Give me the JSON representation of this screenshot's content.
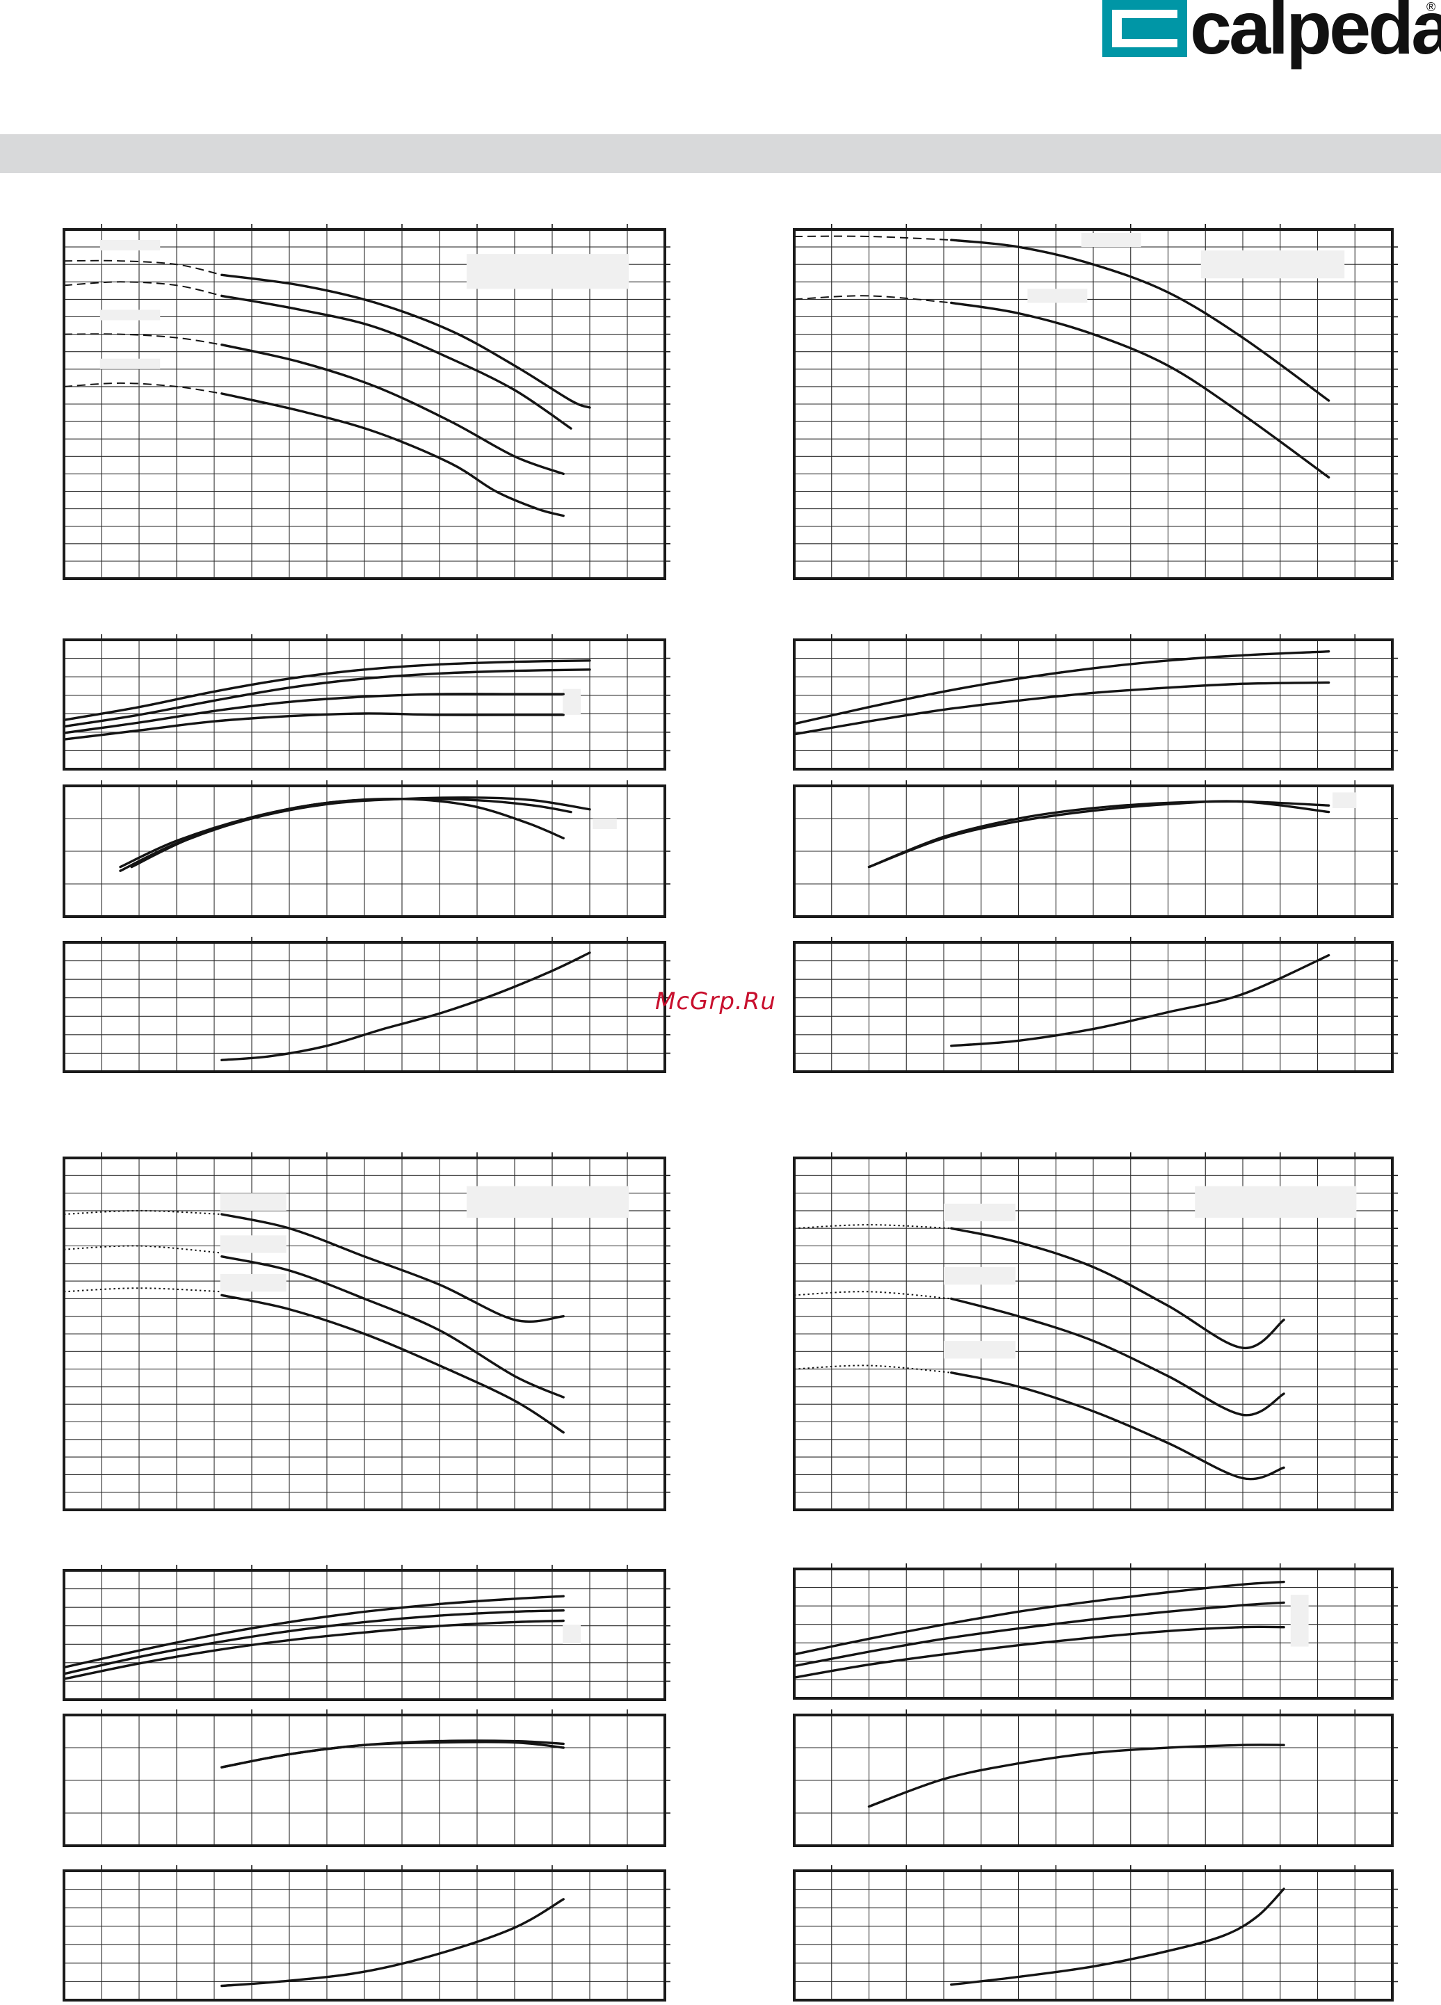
{
  "header": {
    "brand": "calpeda",
    "registered_mark": "®",
    "logo_colors": {
      "mark": "#0096a6",
      "inner": "#ffffff",
      "text": "#111111"
    },
    "band_color": "#d8d9da"
  },
  "watermark": {
    "text": "McGrp.Ru",
    "color": "#c8102e"
  },
  "chart_data": [
    {
      "id": "A-head",
      "type": "line",
      "title": "",
      "xlabel": "",
      "ylabel": "",
      "xlim": [
        0,
        16
      ],
      "ylim": [
        0,
        100
      ],
      "extension_style": "dashed",
      "series": [
        {
          "x": [
            4.2,
            6.3,
            8.3,
            10.3,
            12.0,
            13.5,
            14.0
          ],
          "y": [
            87,
            84,
            79,
            71,
            61,
            51,
            49
          ]
        },
        {
          "x": [
            4.2,
            6.3,
            8.3,
            10.3,
            12.0,
            13.5
          ],
          "y": [
            81,
            77,
            72,
            63,
            54,
            43
          ]
        },
        {
          "x": [
            4.2,
            6.3,
            8.3,
            10.3,
            12.0,
            13.3
          ],
          "y": [
            67,
            62,
            55,
            45,
            35,
            30
          ]
        },
        {
          "x": [
            4.2,
            6.3,
            8.3,
            10.3,
            11.5,
            12.6,
            13.3
          ],
          "y": [
            53,
            48,
            42,
            33,
            25,
            20,
            18
          ]
        }
      ],
      "extensions": [
        {
          "x": [
            0,
            1.5,
            3.0,
            4.2
          ],
          "y": [
            91,
            91,
            90,
            87
          ]
        },
        {
          "x": [
            0,
            1.5,
            3.0,
            4.2
          ],
          "y": [
            84,
            85,
            84,
            81
          ]
        },
        {
          "x": [
            0,
            1.5,
            3.0,
            4.2
          ],
          "y": [
            70,
            70,
            69,
            67
          ]
        },
        {
          "x": [
            0,
            1.5,
            3.0,
            4.2
          ],
          "y": [
            55,
            56,
            55,
            53
          ]
        }
      ]
    },
    {
      "id": "A-power",
      "type": "line",
      "title": "",
      "xlabel": "",
      "ylabel": "",
      "xlim": [
        0,
        16
      ],
      "ylim": [
        0,
        100
      ],
      "series": [
        {
          "x": [
            0,
            2,
            4,
            6,
            8,
            10,
            12,
            14
          ],
          "y": [
            38,
            48,
            60,
            70,
            77,
            81,
            83,
            84
          ]
        },
        {
          "x": [
            0,
            2,
            4,
            6,
            8,
            10,
            12,
            14
          ],
          "y": [
            33,
            42,
            53,
            63,
            70,
            74,
            76,
            77
          ]
        },
        {
          "x": [
            0,
            2,
            4,
            6,
            8,
            10,
            12,
            13.3
          ],
          "y": [
            28,
            36,
            45,
            52,
            56,
            58,
            58,
            58
          ]
        },
        {
          "x": [
            0,
            2,
            4,
            6,
            8,
            10,
            12,
            13.3
          ],
          "y": [
            23,
            30,
            37,
            41,
            43,
            42,
            42,
            42
          ]
        }
      ]
    },
    {
      "id": "A-efficiency",
      "type": "line",
      "title": "",
      "xlabel": "",
      "ylabel": "",
      "xlim": [
        0,
        16
      ],
      "ylim": [
        0,
        100
      ],
      "series": [
        {
          "x": [
            1.5,
            3,
            5,
            7,
            9,
            11,
            12.5,
            14
          ],
          "y": [
            35,
            56,
            75,
            86,
            90,
            91,
            89,
            82
          ]
        },
        {
          "x": [
            1.5,
            3,
            5,
            7,
            9,
            11,
            12.5,
            13.5
          ],
          "y": [
            38,
            58,
            76,
            87,
            90,
            89,
            85,
            80
          ]
        },
        {
          "x": [
            1.8,
            3.3,
            5.2,
            7,
            9,
            10.8,
            12.3,
            13.3
          ],
          "y": [
            38,
            59,
            77,
            87,
            90,
            85,
            72,
            60
          ]
        }
      ]
    },
    {
      "id": "A-npsh",
      "type": "line",
      "title": "",
      "xlabel": "",
      "ylabel": "",
      "xlim": [
        0,
        16
      ],
      "ylim": [
        0,
        100
      ],
      "series": [
        {
          "x": [
            4.2,
            5.5,
            7,
            8.5,
            10,
            11.5,
            13,
            14
          ],
          "y": [
            9,
            12,
            20,
            33,
            45,
            60,
            78,
            92
          ]
        }
      ]
    },
    {
      "id": "B-head",
      "type": "line",
      "title": "",
      "xlabel": "",
      "ylabel": "",
      "xlim": [
        0,
        16
      ],
      "ylim": [
        0,
        100
      ],
      "extension_style": "dashed",
      "series": [
        {
          "x": [
            4.2,
            6,
            8,
            10,
            12,
            14.3
          ],
          "y": [
            97,
            95,
            90,
            82,
            69,
            51
          ]
        },
        {
          "x": [
            4.2,
            6,
            8,
            10,
            12,
            14.3
          ],
          "y": [
            79,
            76,
            70,
            61,
            47,
            29
          ]
        }
      ],
      "extensions": [
        {
          "x": [
            0,
            2,
            4.2
          ],
          "y": [
            98,
            98,
            97
          ]
        },
        {
          "x": [
            0,
            2,
            4.2
          ],
          "y": [
            80,
            81,
            79
          ]
        }
      ]
    },
    {
      "id": "B-power",
      "type": "line",
      "title": "",
      "xlabel": "",
      "ylabel": "",
      "xlim": [
        0,
        16
      ],
      "ylim": [
        0,
        100
      ],
      "series": [
        {
          "x": [
            0,
            2,
            4,
            6,
            8,
            10,
            12,
            14.3
          ],
          "y": [
            35,
            48,
            60,
            70,
            78,
            84,
            88,
            91
          ]
        },
        {
          "x": [
            0,
            2,
            4,
            6,
            8,
            10,
            12,
            14.3
          ],
          "y": [
            27,
            37,
            46,
            53,
            59,
            63,
            66,
            67
          ]
        }
      ]
    },
    {
      "id": "B-efficiency",
      "type": "line",
      "title": "",
      "xlabel": "",
      "ylabel": "",
      "xlim": [
        0,
        16
      ],
      "ylim": [
        0,
        100
      ],
      "series": [
        {
          "x": [
            2,
            4,
            6,
            8,
            10,
            12,
            14.3
          ],
          "y": [
            38,
            61,
            75,
            83,
            87,
            88,
            85
          ]
        },
        {
          "x": [
            2,
            4,
            6,
            8,
            10,
            12,
            14.3
          ],
          "y": [
            38,
            60,
            73,
            81,
            86,
            88,
            80
          ]
        }
      ]
    },
    {
      "id": "B-npsh",
      "type": "line",
      "title": "",
      "xlabel": "",
      "ylabel": "",
      "xlim": [
        0,
        16
      ],
      "ylim": [
        0,
        100
      ],
      "series": [
        {
          "x": [
            4.2,
            6,
            8,
            10,
            12,
            14.3
          ],
          "y": [
            20,
            24,
            33,
            46,
            60,
            90
          ]
        }
      ]
    },
    {
      "id": "C-head",
      "type": "line",
      "title": "",
      "xlabel": "",
      "ylabel": "",
      "xlim": [
        0,
        16
      ],
      "ylim": [
        0,
        100
      ],
      "extension_style": "dotted",
      "series": [
        {
          "x": [
            4.2,
            6,
            8,
            10,
            12,
            13.3
          ],
          "y": [
            84,
            80,
            72,
            64,
            54,
            55
          ]
        },
        {
          "x": [
            4.2,
            6,
            8,
            10,
            12,
            13.3
          ],
          "y": [
            72,
            68,
            60,
            51,
            38,
            32
          ]
        },
        {
          "x": [
            4.2,
            6,
            8,
            10,
            12,
            13.3
          ],
          "y": [
            61,
            57,
            50,
            41,
            31,
            22
          ]
        }
      ],
      "extensions": [
        {
          "x": [
            0,
            2,
            4.2
          ],
          "y": [
            84,
            85,
            84
          ]
        },
        {
          "x": [
            0,
            2,
            4.2
          ],
          "y": [
            74,
            75,
            73
          ]
        },
        {
          "x": [
            0,
            2,
            4.2
          ],
          "y": [
            62,
            63,
            62
          ]
        }
      ]
    },
    {
      "id": "C-power",
      "type": "line",
      "title": "",
      "xlabel": "",
      "ylabel": "",
      "xlim": [
        0,
        16
      ],
      "ylim": [
        0,
        100
      ],
      "series": [
        {
          "x": [
            0,
            2,
            4,
            6,
            8,
            10,
            12,
            13.3
          ],
          "y": [
            25,
            38,
            50,
            60,
            68,
            74,
            78,
            80
          ]
        },
        {
          "x": [
            0,
            2,
            4,
            6,
            8,
            10,
            12,
            13.3
          ],
          "y": [
            20,
            33,
            44,
            53,
            60,
            65,
            68,
            69
          ]
        },
        {
          "x": [
            0,
            2,
            4,
            6,
            8,
            10,
            12,
            13.3
          ],
          "y": [
            16,
            28,
            38,
            46,
            52,
            57,
            60,
            61
          ]
        }
      ]
    },
    {
      "id": "C-efficiency",
      "type": "line",
      "title": "",
      "xlabel": "",
      "ylabel": "",
      "xlim": [
        0,
        16
      ],
      "ylim": [
        0,
        100
      ],
      "series": [
        {
          "x": [
            4.2,
            6,
            8,
            10,
            12,
            13.3
          ],
          "y": [
            60,
            70,
            77,
            80,
            80,
            78
          ]
        },
        {
          "x": [
            4.2,
            6,
            8,
            10,
            12,
            13.3
          ],
          "y": [
            60,
            70,
            77,
            79,
            79,
            75
          ]
        }
      ]
    },
    {
      "id": "C-npsh",
      "type": "line",
      "title": "",
      "xlabel": "",
      "ylabel": "",
      "xlim": [
        0,
        16
      ],
      "ylim": [
        0,
        100
      ],
      "series": [
        {
          "x": [
            4.2,
            6,
            8,
            10,
            12,
            13.3
          ],
          "y": [
            11,
            15,
            22,
            36,
            56,
            78
          ]
        }
      ]
    },
    {
      "id": "D-head",
      "type": "line",
      "title": "",
      "xlabel": "",
      "ylabel": "",
      "xlim": [
        0,
        16
      ],
      "ylim": [
        0,
        100
      ],
      "extension_style": "dotted",
      "series": [
        {
          "x": [
            4.2,
            6,
            8,
            10,
            12,
            13.1
          ],
          "y": [
            80,
            76,
            69,
            58,
            46,
            54
          ]
        },
        {
          "x": [
            4.2,
            6,
            8,
            10,
            12,
            13.1
          ],
          "y": [
            60,
            55,
            48,
            38,
            27,
            33
          ]
        },
        {
          "x": [
            4.2,
            6,
            8,
            10,
            12,
            13.1
          ],
          "y": [
            39,
            35,
            28,
            19,
            9,
            12
          ]
        }
      ],
      "extensions": [
        {
          "x": [
            0,
            2,
            4.2
          ],
          "y": [
            80,
            81,
            80
          ]
        },
        {
          "x": [
            0,
            2,
            4.2
          ],
          "y": [
            61,
            62,
            60
          ]
        },
        {
          "x": [
            0,
            2,
            4.2
          ],
          "y": [
            40,
            41,
            39
          ]
        }
      ]
    },
    {
      "id": "D-power",
      "type": "line",
      "title": "",
      "xlabel": "",
      "ylabel": "",
      "xlim": [
        0,
        16
      ],
      "ylim": [
        0,
        100
      ],
      "series": [
        {
          "x": [
            0,
            2,
            4,
            6,
            8,
            10,
            12,
            13.1
          ],
          "y": [
            34,
            46,
            57,
            67,
            75,
            82,
            88,
            90
          ]
        },
        {
          "x": [
            0,
            2,
            4,
            6,
            8,
            10,
            12,
            13.1
          ],
          "y": [
            25,
            36,
            46,
            54,
            61,
            67,
            72,
            74
          ]
        },
        {
          "x": [
            0,
            2,
            4,
            6,
            8,
            10,
            12,
            13.1
          ],
          "y": [
            16,
            26,
            34,
            41,
            47,
            52,
            55,
            55
          ]
        }
      ]
    },
    {
      "id": "D-efficiency",
      "type": "line",
      "title": "",
      "xlabel": "",
      "ylabel": "",
      "xlim": [
        0,
        16
      ],
      "ylim": [
        0,
        100
      ],
      "series": [
        {
          "x": [
            2,
            4,
            6,
            8,
            10,
            12,
            13.1
          ],
          "y": [
            30,
            51,
            63,
            71,
            75,
            77,
            77
          ]
        }
      ]
    },
    {
      "id": "D-npsh",
      "type": "line",
      "title": "",
      "xlabel": "",
      "ylabel": "",
      "xlim": [
        0,
        16
      ],
      "ylim": [
        0,
        100
      ],
      "series": [
        {
          "x": [
            4.2,
            6,
            8,
            10,
            11.5,
            12.4,
            13.1
          ],
          "y": [
            12,
            18,
            26,
            38,
            50,
            65,
            86
          ]
        }
      ]
    }
  ]
}
